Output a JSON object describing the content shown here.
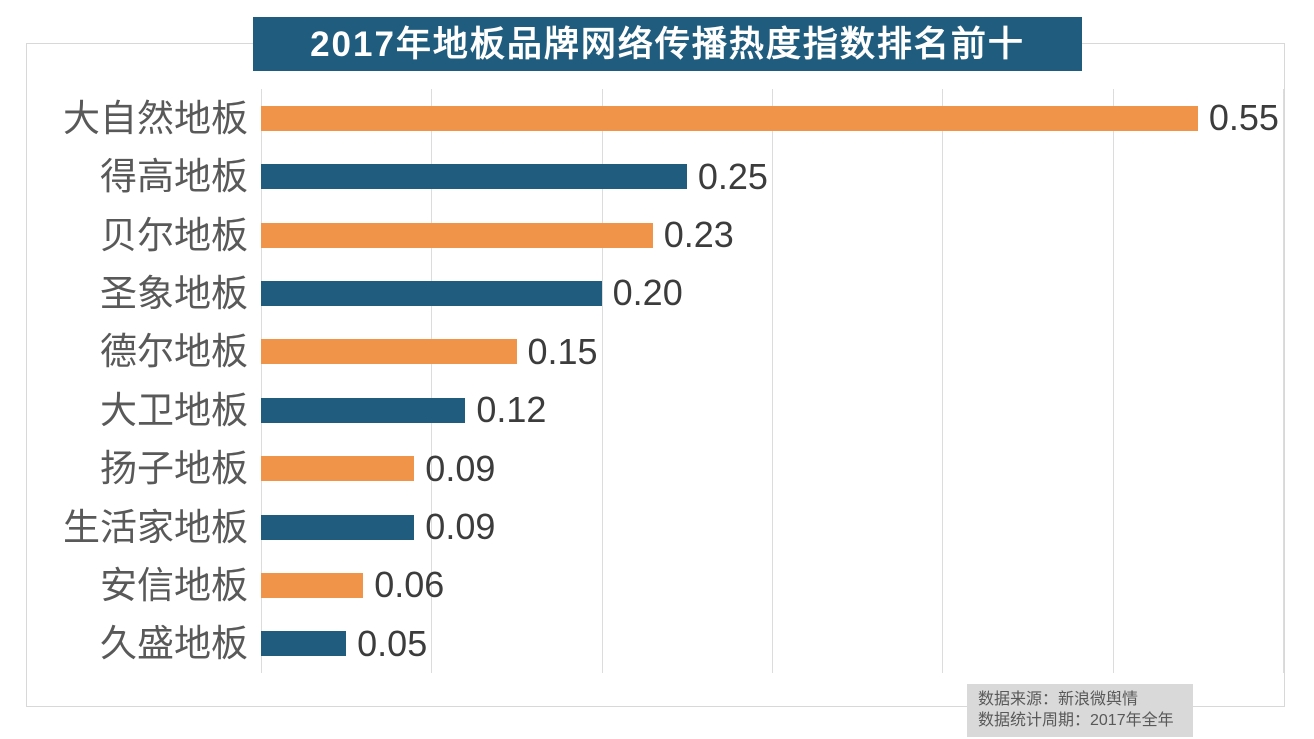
{
  "title": "2017年地板品牌网络传播热度指数排名前十",
  "source_note": {
    "line1": "数据来源：新浪微舆情",
    "line2": "数据统计周期：2017年全年"
  },
  "colors": {
    "title_bg": "#1f5c7d",
    "title_text": "#ffffff",
    "orange": "#f0944a",
    "teal": "#1f5c7d",
    "gridline": "#dcdcdc",
    "border": "#d8d8d8",
    "category_text": "#595959",
    "value_text": "#3c3c3c",
    "note_bg": "#d9d9d9",
    "note_text": "#595959"
  },
  "chart_data": {
    "type": "bar",
    "orientation": "horizontal",
    "title": "2017年地板品牌网络传播热度指数排名前十",
    "categories": [
      "大自然地板",
      "得高地板",
      "贝尔地板",
      "圣象地板",
      "德尔地板",
      "大卫地板",
      "扬子地板",
      "生活家地板",
      "安信地板",
      "久盛地板"
    ],
    "values": [
      0.55,
      0.25,
      0.23,
      0.2,
      0.15,
      0.12,
      0.09,
      0.09,
      0.06,
      0.05
    ],
    "value_labels": [
      "0.55",
      "0.25",
      "0.23",
      "0.20",
      "0.15",
      "0.12",
      "0.09",
      "0.09",
      "0.06",
      "0.05"
    ],
    "bar_colors": [
      "#f0944a",
      "#1f5c7d",
      "#f0944a",
      "#1f5c7d",
      "#f0944a",
      "#1f5c7d",
      "#f0944a",
      "#1f5c7d",
      "#f0944a",
      "#1f5c7d"
    ],
    "xlabel": "",
    "ylabel": "",
    "xlim": [
      0,
      0.6
    ],
    "grid_ticks": [
      0,
      0.1,
      0.2,
      0.3,
      0.4,
      0.5,
      0.6
    ],
    "grid": "vertical-only",
    "legend": "none",
    "axis_tick_labels_visible": false,
    "source": [
      "数据来源：新浪微舆情",
      "数据统计周期：2017年全年"
    ]
  }
}
